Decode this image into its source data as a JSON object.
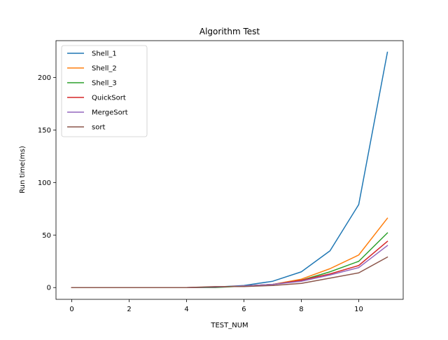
{
  "chart_data": {
    "type": "line",
    "title": "Algorithm Test",
    "xlabel": "TEST_NUM",
    "ylabel": "Run time(ms)",
    "xlim": [
      -0.55,
      11.55
    ],
    "ylim": [
      -11.2,
      235.0
    ],
    "xticks": [
      0,
      2,
      4,
      6,
      8,
      10
    ],
    "yticks": [
      0,
      50,
      100,
      150,
      200
    ],
    "grid": false,
    "legend_position": "top-left",
    "x": [
      0,
      1,
      2,
      3,
      4,
      5,
      6,
      7,
      8,
      9,
      10,
      11
    ],
    "series": [
      {
        "name": "Shell_1",
        "color": "#1f77b4",
        "values": [
          0,
          0,
          0,
          0,
          0,
          0.5,
          2,
          6,
          15,
          35,
          79,
          224
        ]
      },
      {
        "name": "Shell_2",
        "color": "#ff7f0e",
        "values": [
          0,
          0,
          0,
          0,
          0,
          0.5,
          1.5,
          3,
          8,
          18,
          31,
          66
        ]
      },
      {
        "name": "Shell_3",
        "color": "#2ca02c",
        "values": [
          0,
          0,
          0,
          0,
          0,
          0,
          1.5,
          3,
          7,
          15,
          25,
          52
        ]
      },
      {
        "name": "QuickSort",
        "color": "#d62728",
        "values": [
          0,
          0,
          0,
          0,
          0,
          0.5,
          1.5,
          3,
          7,
          13,
          21,
          44
        ]
      },
      {
        "name": "MergeSort",
        "color": "#9467bd",
        "values": [
          0,
          0,
          0,
          0,
          0,
          0.5,
          1.5,
          3,
          6,
          12,
          19,
          40
        ]
      },
      {
        "name": "sort",
        "color": "#8c564b",
        "values": [
          0,
          0,
          0,
          0,
          0,
          1,
          1,
          2,
          4,
          9,
          14,
          29
        ]
      }
    ]
  }
}
